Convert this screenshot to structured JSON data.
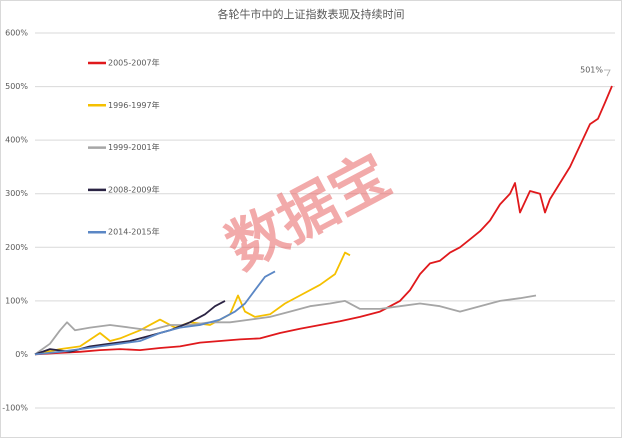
{
  "chart_data": {
    "type": "line",
    "title": "各轮牛市中的上证指数表现及持续时间",
    "watermark": "数据宝",
    "xlim": [
      0,
      580
    ],
    "ylim": [
      -100,
      600
    ],
    "yticks": [
      {
        "value": -100,
        "label": "-100%"
      },
      {
        "value": 0,
        "label": "0%"
      },
      {
        "value": 100,
        "label": "100%"
      },
      {
        "value": 200,
        "label": "200%"
      },
      {
        "value": 300,
        "label": "300%"
      },
      {
        "value": 400,
        "label": "400%"
      },
      {
        "value": 500,
        "label": "500%"
      },
      {
        "value": 600,
        "label": "600%"
      }
    ],
    "grid": true,
    "series": [
      {
        "name": "2005-2007年",
        "color": "#e0191c",
        "x": [
          0,
          25,
          45,
          65,
          85,
          105,
          125,
          145,
          165,
          185,
          205,
          225,
          245,
          265,
          285,
          305,
          325,
          345,
          365,
          375,
          385,
          395,
          405,
          415,
          425,
          435,
          445,
          455,
          465,
          475,
          480,
          485,
          495,
          505,
          510,
          515,
          525,
          535,
          545,
          555,
          563,
          570,
          577
        ],
        "values": [
          0,
          3,
          5,
          8,
          10,
          8,
          12,
          15,
          22,
          25,
          28,
          30,
          40,
          48,
          55,
          62,
          70,
          80,
          100,
          120,
          150,
          170,
          175,
          190,
          200,
          215,
          230,
          250,
          280,
          300,
          320,
          265,
          305,
          300,
          265,
          290,
          320,
          350,
          390,
          430,
          440,
          470,
          501
        ],
        "value_labels": [
          null,
          null,
          null,
          null,
          null,
          null,
          null,
          null,
          null,
          null,
          null,
          null,
          null,
          null,
          null,
          null,
          null,
          null,
          null,
          null,
          null,
          null,
          null,
          null,
          null,
          null,
          null,
          null,
          null,
          null,
          null,
          null,
          null,
          null,
          null,
          null,
          null,
          null,
          null,
          null,
          null,
          null,
          "501%"
        ]
      },
      {
        "name": "1996-1997年",
        "color": "#f5c000",
        "x": [
          0,
          25,
          45,
          65,
          75,
          85,
          105,
          125,
          140,
          155,
          175,
          195,
          203,
          210,
          220,
          235,
          250,
          265,
          285,
          300,
          310,
          315
        ],
        "values": [
          0,
          10,
          15,
          40,
          25,
          30,
          45,
          65,
          50,
          60,
          55,
          75,
          110,
          80,
          70,
          75,
          95,
          110,
          130,
          150,
          190,
          185
        ]
      },
      {
        "name": "1999-2001年",
        "color": "#a6a6a6",
        "x": [
          0,
          15,
          25,
          32,
          40,
          55,
          75,
          95,
          115,
          135,
          155,
          175,
          195,
          215,
          235,
          255,
          275,
          295,
          310,
          325,
          345,
          365,
          385,
          405,
          425,
          445,
          465,
          485,
          501
        ],
        "values": [
          0,
          20,
          45,
          60,
          45,
          50,
          55,
          50,
          45,
          55,
          55,
          60,
          60,
          65,
          70,
          80,
          90,
          95,
          100,
          85,
          85,
          90,
          95,
          90,
          80,
          90,
          100,
          105,
          110
        ]
      },
      {
        "name": "2008-2009年",
        "color": "#2b2444",
        "x": [
          0,
          15,
          35,
          55,
          75,
          95,
          115,
          135,
          155,
          170,
          180,
          190
        ],
        "values": [
          0,
          10,
          5,
          15,
          20,
          25,
          35,
          45,
          60,
          75,
          90,
          100
        ]
      },
      {
        "name": "2014-2015年",
        "color": "#5b87c5",
        "x": [
          0,
          25,
          45,
          65,
          85,
          105,
          125,
          145,
          165,
          185,
          200,
          210,
          220,
          230,
          240
        ],
        "values": [
          0,
          5,
          10,
          15,
          20,
          25,
          40,
          50,
          55,
          65,
          80,
          95,
          120,
          145,
          155
        ]
      }
    ]
  }
}
